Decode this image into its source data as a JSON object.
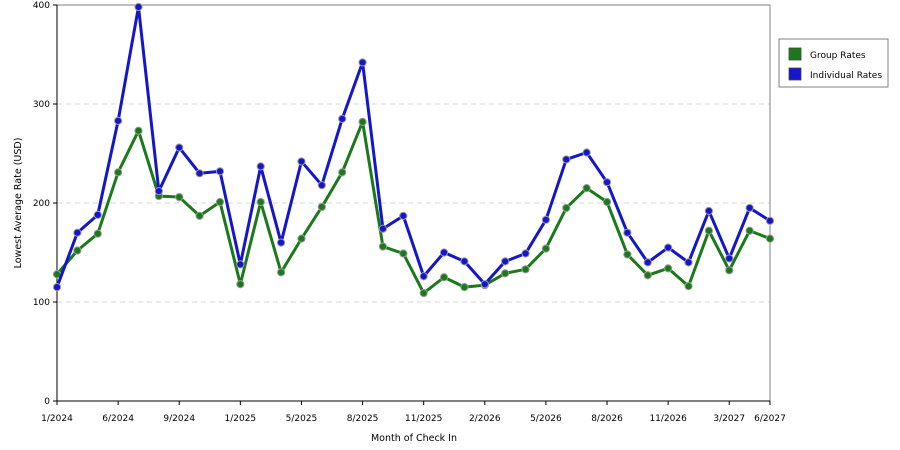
{
  "chart_data": {
    "type": "line",
    "title": "",
    "xlabel": "Month of Check In",
    "ylabel": "Lowest Average Rate (USD)",
    "ylim": [
      0,
      400
    ],
    "yticks": [
      0,
      100,
      200,
      300,
      400
    ],
    "x_tick_labels": [
      "1/2024",
      "6/2024",
      "9/2024",
      "1/2025",
      "5/2025",
      "8/2025",
      "11/2025",
      "2/2026",
      "5/2026",
      "8/2026",
      "11/2026",
      "3/2027",
      "6/2027"
    ],
    "x_tick_index": [
      0,
      3,
      6,
      9,
      12,
      15,
      18,
      21,
      24,
      27,
      30,
      33,
      35
    ],
    "legend_position": "right",
    "grid": "horizontal dashed",
    "series": [
      {
        "name": "Group Rates",
        "color": "#1a7a1a",
        "values": [
          128,
          152,
          169,
          231,
          273,
          207,
          206,
          187,
          201,
          118,
          201,
          130,
          164,
          196,
          231,
          282,
          156,
          149,
          109,
          125,
          115,
          117,
          129,
          133,
          154,
          195,
          215,
          201,
          148,
          127,
          134,
          116,
          172,
          132,
          172,
          164
        ]
      },
      {
        "name": "Individual Rates",
        "color": "#1515cc",
        "values": [
          115,
          170,
          188,
          283,
          398,
          212,
          256,
          230,
          232,
          138,
          237,
          160,
          242,
          218,
          285,
          342,
          174,
          187,
          126,
          150,
          141,
          118,
          141,
          149,
          183,
          244,
          251,
          221,
          170,
          140,
          155,
          140,
          192,
          144,
          195,
          182
        ]
      }
    ]
  }
}
